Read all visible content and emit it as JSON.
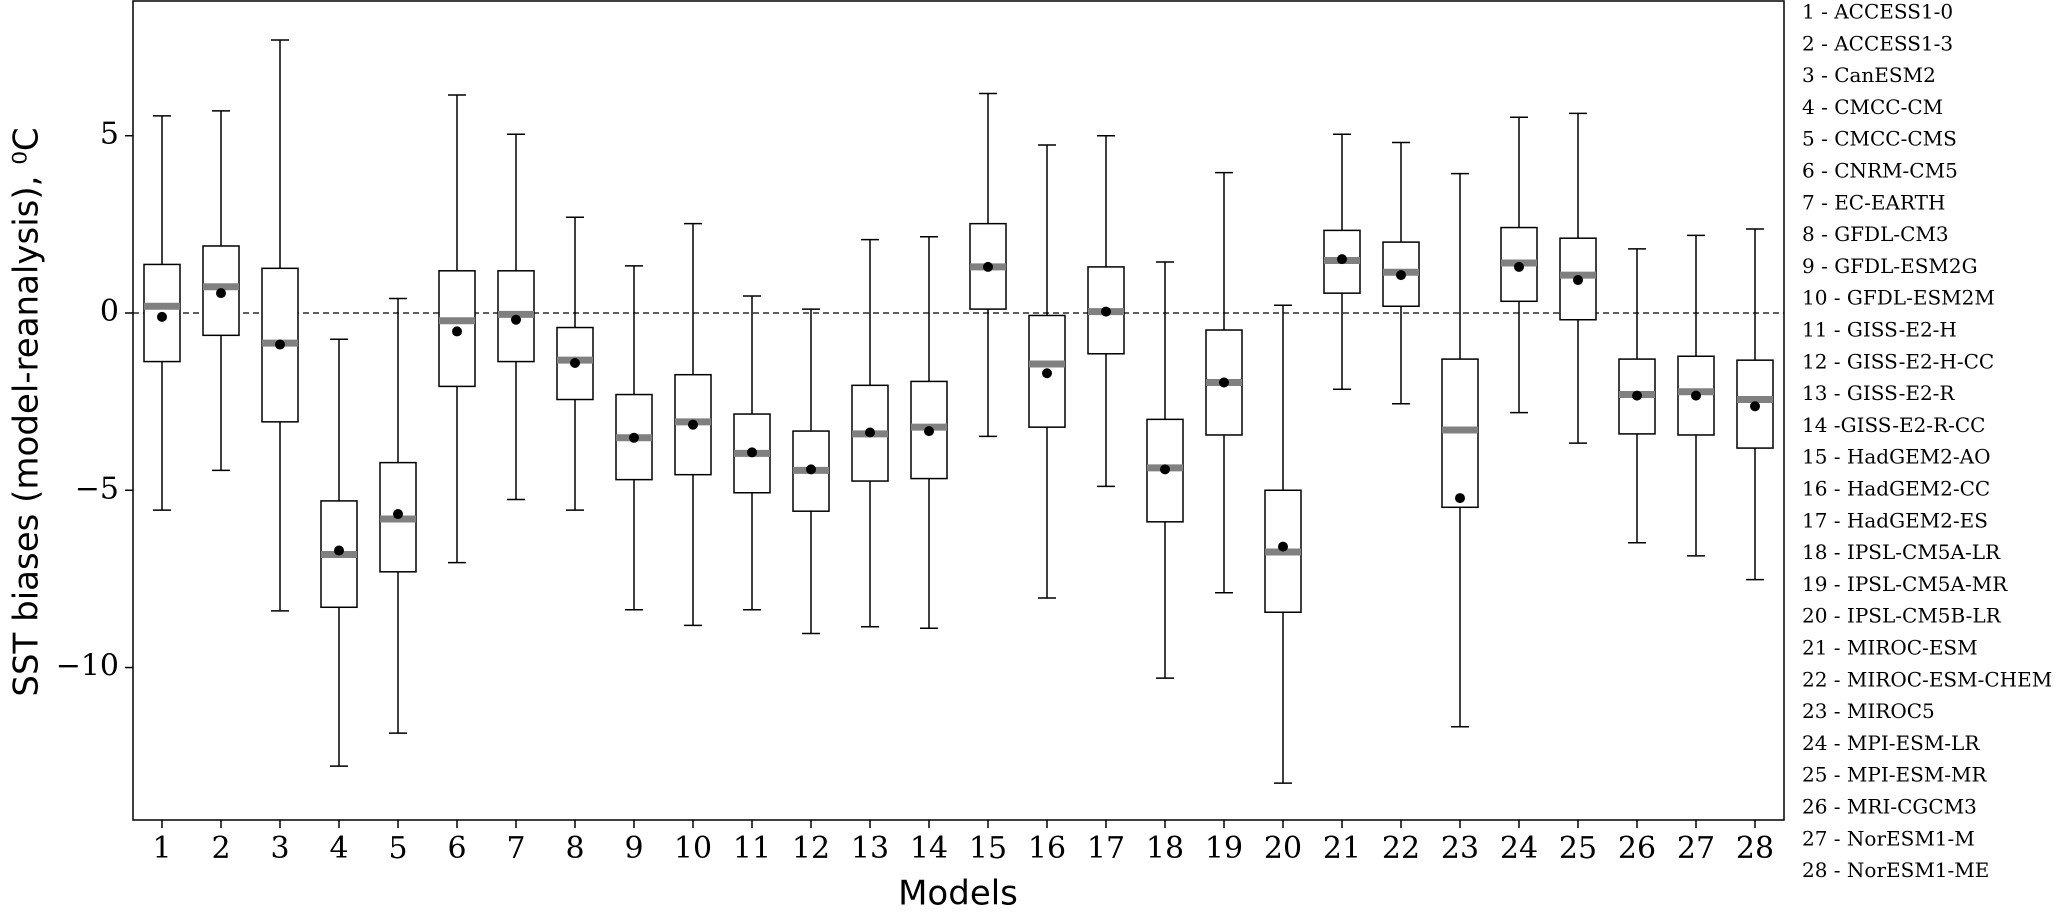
{
  "chart_data": {
    "type": "box",
    "x_label": "Models",
    "y_label": "SST biases (model-reanalysis), ⁰C",
    "categories": [
      "1",
      "2",
      "3",
      "4",
      "5",
      "6",
      "7",
      "8",
      "9",
      "10",
      "11",
      "12",
      "13",
      "14",
      "15",
      "16",
      "17",
      "18",
      "19",
      "20",
      "21",
      "22",
      "23",
      "24",
      "25",
      "26",
      "27",
      "28"
    ],
    "whisker_low": [
      -5.56,
      -4.44,
      -8.4,
      -12.78,
      -11.85,
      -7.04,
      -5.26,
      -5.56,
      -8.37,
      -8.81,
      -8.37,
      -9.04,
      -8.85,
      -8.89,
      -3.48,
      -8.04,
      -4.89,
      -10.3,
      -7.89,
      -13.26,
      -2.15,
      -2.56,
      -11.67,
      -2.81,
      -3.67,
      -6.48,
      -6.85,
      -7.52
    ],
    "q1": [
      -1.37,
      -0.63,
      -3.07,
      -8.3,
      -7.3,
      -2.07,
      -1.37,
      -2.44,
      -4.7,
      -4.56,
      -5.07,
      -5.59,
      -4.74,
      -4.67,
      0.11,
      -3.22,
      -1.15,
      -5.89,
      -3.44,
      -8.44,
      0.56,
      0.19,
      -5.48,
      0.33,
      -0.19,
      -3.41,
      -3.44,
      -3.81
    ],
    "median": [
      0.19,
      0.74,
      -0.85,
      -6.81,
      -5.81,
      -0.22,
      -0.04,
      -1.33,
      -3.52,
      -3.07,
      -3.96,
      -4.44,
      -3.41,
      -3.22,
      1.3,
      -1.44,
      0.04,
      -4.37,
      -1.96,
      -6.74,
      1.48,
      1.15,
      -3.3,
      1.41,
      1.07,
      -2.3,
      -2.22,
      -2.44
    ],
    "q3": [
      1.37,
      1.89,
      1.26,
      -5.3,
      -4.22,
      1.19,
      1.19,
      -0.41,
      -2.3,
      -1.74,
      -2.85,
      -3.33,
      -2.04,
      -1.93,
      2.52,
      -0.07,
      1.3,
      -3.0,
      -0.48,
      -5.0,
      2.33,
      2.0,
      -1.3,
      2.41,
      2.11,
      -1.3,
      -1.22,
      -1.33
    ],
    "whisker_high": [
      5.56,
      5.7,
      7.7,
      -0.74,
      0.41,
      6.15,
      5.04,
      2.7,
      1.33,
      2.52,
      0.48,
      0.11,
      2.07,
      2.15,
      6.19,
      4.74,
      5.0,
      1.44,
      3.96,
      0.22,
      5.04,
      4.81,
      3.93,
      5.52,
      5.63,
      1.81,
      2.19,
      2.37
    ],
    "mean": [
      -0.11,
      0.56,
      -0.89,
      -6.7,
      -5.67,
      -0.52,
      -0.19,
      -1.41,
      -3.52,
      -3.15,
      -3.93,
      -4.41,
      -3.37,
      -3.33,
      1.3,
      -1.7,
      0.04,
      -4.41,
      -1.96,
      -6.59,
      1.52,
      1.07,
      -5.22,
      1.3,
      0.93,
      -2.33,
      -2.33,
      -2.63
    ],
    "median_color": "#808080",
    "mean_color": "#000000",
    "reference_line": 0,
    "ylim": [
      -14.3,
      8.8
    ],
    "yticks": [
      {
        "value": -10,
        "label": "−10"
      },
      {
        "value": -5,
        "label": "−5"
      },
      0,
      5
    ],
    "model_names": [
      "1 - ACCESS1-0",
      "2 - ACCESS1-3",
      "3 - CanESM2",
      "4 - CMCC-CM",
      "5 - CMCC-CMS",
      "6 - CNRM-CM5",
      "7 - EC-EARTH",
      "8 - GFDL-CM3",
      "9 - GFDL-ESM2G",
      "10 - GFDL-ESM2M",
      "11 - GISS-E2-H",
      "12 - GISS-E2-H-CC",
      "13 - GISS-E2-R",
      "14 -GISS-E2-R-CC",
      "15 - HadGEM2-AO",
      "16 - HadGEM2-CC",
      "17 - HadGEM2-ES",
      "18 - IPSL-CM5A-LR",
      "19 - IPSL-CM5A-MR",
      "20 - IPSL-CM5B-LR",
      "21 - MIROC-ESM",
      "22 - MIROC-ESM-CHEM",
      "23 - MIROC5",
      "24 - MPI-ESM-LR",
      "25 - MPI-ESM-MR",
      "26 - MRI-CGCM3",
      "27 - NorESM1-M",
      "28 - NorESM1-ME"
    ]
  }
}
